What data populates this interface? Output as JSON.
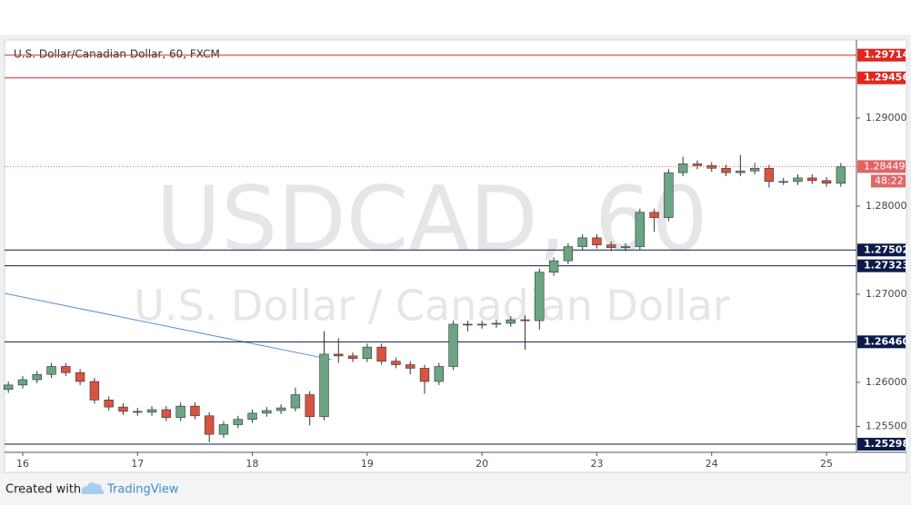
{
  "chart_data": {
    "type": "candlestick",
    "title": "U.S. Dollar/Canadian Dollar, 60, FXCM",
    "watermark": "USDCAD, 60",
    "watermark_subtitle": "U.S. Dollar / Canadian Dollar",
    "x": [
      -0.125,
      0,
      0.125,
      0.25,
      0.375,
      0.5,
      0.625,
      0.75,
      0.875,
      1,
      1.125,
      1.25,
      1.375,
      1.5,
      1.625,
      1.75,
      1.875,
      2,
      2.125,
      2.25,
      2.375,
      2.5,
      2.625,
      2.75,
      2.875,
      3,
      3.125,
      3.25,
      3.375,
      3.5,
      3.625,
      3.75,
      3.875,
      4,
      4.125,
      4.25,
      4.375,
      4.5,
      4.625,
      4.75,
      4.875,
      5,
      5.125,
      5.25,
      5.375,
      5.5,
      5.625,
      5.75,
      5.875,
      6,
      6.125,
      6.25,
      6.375,
      6.5,
      6.625,
      6.75,
      6.875,
      7,
      7.125
    ],
    "open": [
      1.2592,
      1.2597,
      1.2603,
      1.2609,
      1.2618,
      1.2611,
      1.2601,
      1.258,
      1.2572,
      1.2567,
      1.2566,
      1.2569,
      1.256,
      1.2573,
      1.2562,
      1.2541,
      1.2552,
      1.2558,
      1.2565,
      1.2568,
      1.2571,
      1.2586,
      1.2561,
      1.2632,
      1.263,
      1.2627,
      1.264,
      1.2624,
      1.262,
      1.2616,
      1.2601,
      1.2618,
      1.2666,
      1.2665,
      1.2666,
      1.2667,
      1.2671,
      1.267,
      1.2725,
      1.2738,
      1.2754,
      1.2764,
      1.2756,
      1.2753,
      1.2754,
      1.2793,
      1.2787,
      1.2838,
      1.2848,
      1.2846,
      1.2843,
      1.2838,
      1.284,
      1.2843,
      1.2828,
      1.2828,
      1.2832,
      1.2829,
      1.2826
    ],
    "high": [
      1.2601,
      1.2607,
      1.2613,
      1.2622,
      1.2622,
      1.2615,
      1.2605,
      1.2584,
      1.2576,
      1.2571,
      1.2573,
      1.2573,
      1.2577,
      1.2577,
      1.2566,
      1.2556,
      1.2562,
      1.2569,
      1.2572,
      1.2575,
      1.2594,
      1.259,
      1.2658,
      1.265,
      1.2634,
      1.2644,
      1.2644,
      1.2628,
      1.2624,
      1.262,
      1.2622,
      1.267,
      1.267,
      1.267,
      1.2671,
      1.2675,
      1.2676,
      1.2729,
      1.2742,
      1.2758,
      1.2768,
      1.2768,
      1.276,
      1.2758,
      1.2797,
      1.2797,
      1.2842,
      1.2856,
      1.2852,
      1.285,
      1.2847,
      1.2858,
      1.2849,
      1.2847,
      1.2832,
      1.2836,
      1.2836,
      1.2833,
      1.2849
    ],
    "low": [
      1.2588,
      1.2593,
      1.2599,
      1.2605,
      1.2607,
      1.2597,
      1.2576,
      1.2568,
      1.2563,
      1.2562,
      1.2562,
      1.2556,
      1.2556,
      1.2558,
      1.2532,
      1.2537,
      1.2548,
      1.2554,
      1.2561,
      1.2564,
      1.2567,
      1.2551,
      1.2557,
      1.2622,
      1.2623,
      1.2623,
      1.262,
      1.2616,
      1.2609,
      1.2587,
      1.2597,
      1.2614,
      1.2658,
      1.2661,
      1.2662,
      1.2663,
      1.2637,
      1.266,
      1.2721,
      1.2734,
      1.275,
      1.2752,
      1.2749,
      1.2749,
      1.275,
      1.2771,
      1.2783,
      1.2834,
      1.2842,
      1.2839,
      1.2834,
      1.2834,
      1.2836,
      1.2821,
      1.2824,
      1.2824,
      1.2825,
      1.2822,
      1.2822
    ],
    "close": [
      1.2597,
      1.2603,
      1.2609,
      1.2618,
      1.2611,
      1.2601,
      1.258,
      1.2572,
      1.2567,
      1.2566,
      1.2569,
      1.256,
      1.2573,
      1.2562,
      1.2541,
      1.2552,
      1.2558,
      1.2565,
      1.2568,
      1.2571,
      1.2586,
      1.2561,
      1.2632,
      1.263,
      1.2627,
      1.264,
      1.2624,
      1.262,
      1.2616,
      1.2601,
      1.2618,
      1.2666,
      1.2665,
      1.2666,
      1.2667,
      1.2671,
      1.267,
      1.2725,
      1.2738,
      1.2754,
      1.2764,
      1.2756,
      1.2753,
      1.2754,
      1.2793,
      1.2787,
      1.2838,
      1.2848,
      1.2846,
      1.2843,
      1.2838,
      1.284,
      1.2843,
      1.2828,
      1.2828,
      1.2832,
      1.2829,
      1.2826,
      1.28449
    ],
    "up_color": "#6ba583",
    "down_color": "#d75442",
    "xlim": [
      -0.158,
      7.245
    ],
    "xticks": [
      {
        "value": 0,
        "label": "16"
      },
      {
        "value": 1,
        "label": "17"
      },
      {
        "value": 2,
        "label": "18"
      },
      {
        "value": 3,
        "label": "19"
      },
      {
        "value": 4,
        "label": "20"
      },
      {
        "value": 5,
        "label": "23"
      },
      {
        "value": 6,
        "label": "24"
      },
      {
        "value": 7,
        "label": "25"
      }
    ],
    "ylim": [
      1.25216,
      1.29876
    ],
    "yticks": [
      {
        "value": 1.255,
        "label": "1.25500"
      },
      {
        "value": 1.26,
        "label": "1.26000"
      },
      {
        "value": 1.27,
        "label": "1.27000"
      },
      {
        "value": 1.28,
        "label": "1.28000"
      },
      {
        "value": 1.29,
        "label": "1.29000"
      }
    ],
    "grid": false,
    "levels": [
      {
        "value": 1.29714,
        "label": "1.29714",
        "color": "#e0261f"
      },
      {
        "value": 1.29456,
        "label": "1.29456",
        "color": "#e0261f"
      },
      {
        "value": 1.27502,
        "label": "1.27502",
        "color": "#0c1a4a"
      },
      {
        "value": 1.27323,
        "label": "1.27323",
        "color": "#0c1a4a"
      },
      {
        "value": 1.2646,
        "label": "1.26460",
        "color": "#0c1a4a"
      },
      {
        "value": 1.25298,
        "label": "1.25298",
        "color": "#0c1a4a"
      }
    ],
    "price_color": "#e06666",
    "countdown": "48:22",
    "trend_line": {
      "x": [
        -0.158,
        2.69
      ],
      "y": [
        1.2701,
        1.26258
      ],
      "color": "#5b8fd6"
    }
  },
  "footer": {
    "created_with": "Created with",
    "brand": "TradingView"
  }
}
